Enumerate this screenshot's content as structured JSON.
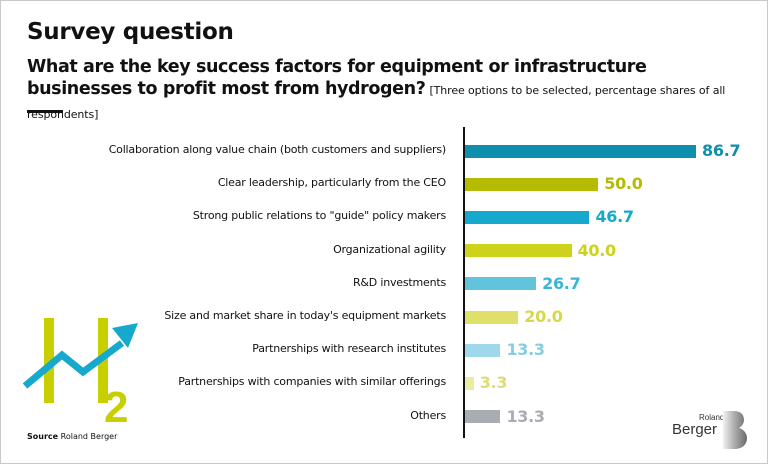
{
  "header": {
    "title": "Survey question",
    "question": "What are the key success factors for equipment or infrastructure businesses to profit most from hydrogen?",
    "note": "[Three options to be selected, percentage shares of all respondents]"
  },
  "footer": {
    "source_label": "Source",
    "source_value": "Roland Berger"
  },
  "logo": {
    "h2_main": "H",
    "h2_sub": "2",
    "brand_small": "Roland",
    "brand_large": "Berger",
    "brand_mark": "B"
  },
  "colors": {
    "dark_teal": "#0e8fae",
    "olive": "#b5bb00",
    "teal": "#16a9cd",
    "lime": "#cdd21a",
    "light_teal": "#62c3dd",
    "light_lime": "#dfe06a",
    "pale_teal": "#9fd8eb",
    "pale_lime": "#ecec9e",
    "grey": "#a9acb3"
  },
  "chart_data": {
    "type": "bar",
    "orientation": "horizontal",
    "title": "What are the key success factors for equipment or infrastructure businesses to profit most from hydrogen?",
    "subtitle": "[Three options to be selected, percentage shares of all respondents]",
    "xlabel": "",
    "ylabel": "",
    "unit": "percent",
    "xlim": [
      0,
      100
    ],
    "grid": false,
    "legend": "none",
    "categories": [
      "Collaboration along value chain (both customers and suppliers)",
      "Clear leadership, particularly from the CEO",
      "Strong public relations to \"guide\" policy makers",
      "Organizational agility",
      "R&D investments",
      "Size and market share in today's equipment markets",
      "Partnerships with research institutes",
      "Partnerships with companies with similar offerings",
      "Others"
    ],
    "values": [
      86.7,
      50.0,
      46.7,
      40.0,
      26.7,
      20.0,
      13.3,
      3.3,
      13.3
    ],
    "value_labels": [
      "86.7",
      "50.0",
      "46.7",
      "40.0",
      "26.7",
      "20.0",
      "13.3",
      "3.3",
      "13.3"
    ],
    "bar_colors": [
      "#0e8fae",
      "#b5bb00",
      "#16a9cd",
      "#cdd21a",
      "#62c3dd",
      "#dfe06a",
      "#9fd8eb",
      "#ecec9e",
      "#a9acb3"
    ],
    "label_colors": [
      "#0e8fae",
      "#b5bb00",
      "#16a9cd",
      "#cdd21a",
      "#3bb5d6",
      "#d5d84a",
      "#85cde4",
      "#dcdc78",
      "#a9acb3"
    ]
  }
}
